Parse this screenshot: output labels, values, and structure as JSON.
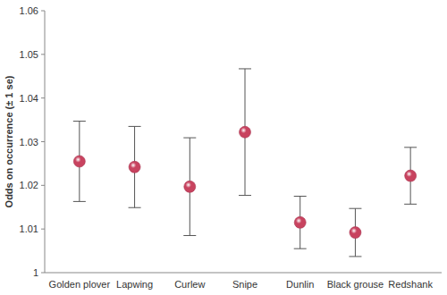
{
  "chart_data": {
    "type": "scatter",
    "y_label": "Odds on occurrence (± 1 se)",
    "categories": [
      "Golden plover",
      "Lapwing",
      "Curlew",
      "Snipe",
      "Dunlin",
      "Black grouse",
      "Redshank"
    ],
    "values": [
      1.0255,
      1.0242,
      1.0197,
      1.0322,
      1.0115,
      1.0092,
      1.0222
    ],
    "errors": [
      0.0092,
      0.0093,
      0.0112,
      0.0145,
      0.006,
      0.0055,
      0.0065
    ],
    "color": "#c8435f",
    "marker": "circle",
    "ylim": [
      1,
      1.06
    ],
    "yticks": [
      1,
      1.01,
      1.02,
      1.03,
      1.04,
      1.05,
      1.06
    ],
    "grid": false
  }
}
